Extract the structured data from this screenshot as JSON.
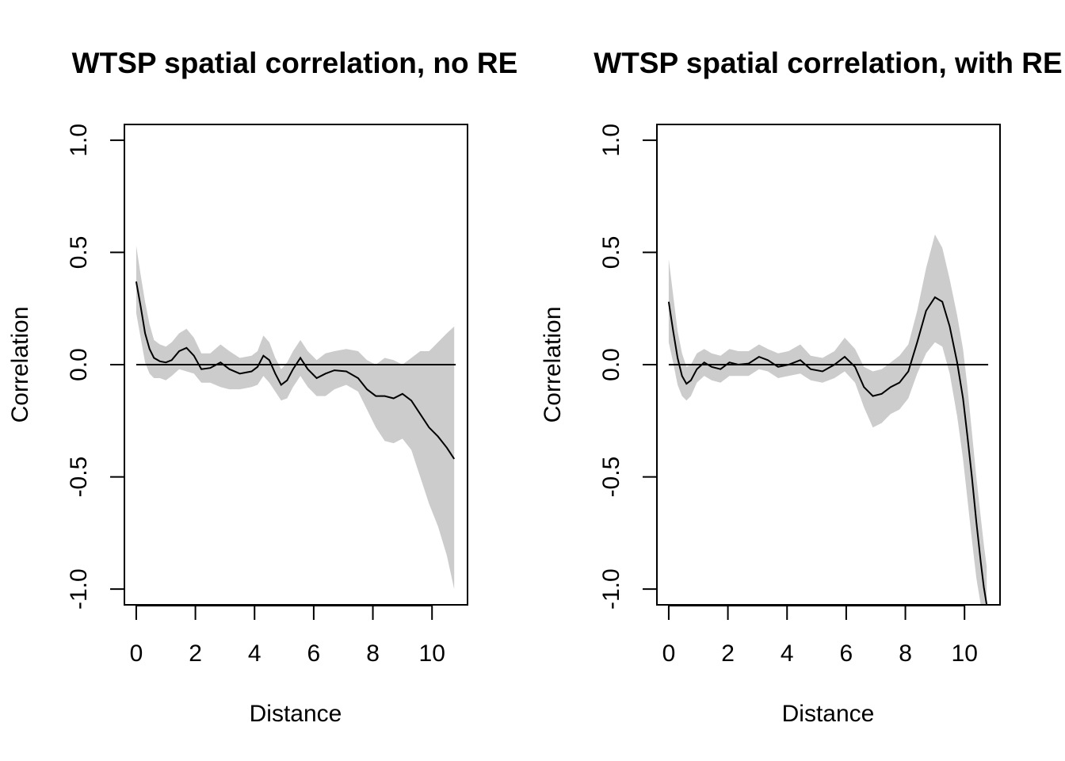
{
  "chart_data": [
    {
      "type": "area",
      "title": "WTSP spatial correlation, no RE",
      "xlabel": "Distance",
      "ylabel": "Correlation",
      "xlim": [
        -0.4,
        11.2
      ],
      "ylim": [
        -1.07,
        1.07
      ],
      "xticks": [
        0,
        2,
        4,
        6,
        8,
        10
      ],
      "yticks": [
        -1.0,
        -0.5,
        0.0,
        0.5,
        1.0
      ],
      "xtick_labels": [
        "0",
        "2",
        "4",
        "6",
        "8",
        "10"
      ],
      "ytick_labels": [
        "-1.0",
        "-0.5",
        "0.0",
        "0.5",
        "1.0"
      ],
      "reference_line": {
        "y": 0,
        "x": [
          0,
          10.8
        ]
      },
      "colors": {
        "band": "#cccccc",
        "line": "#000000"
      },
      "series": [
        {
          "x": [
            0,
            0.15,
            0.3,
            0.45,
            0.6,
            0.8,
            1.0,
            1.2,
            1.45,
            1.7,
            1.95,
            2.2,
            2.5,
            2.85,
            3.15,
            3.5,
            3.9,
            4.1,
            4.3,
            4.5,
            4.7,
            4.9,
            5.1,
            5.3,
            5.55,
            5.8,
            6.1,
            6.4,
            6.7,
            7.1,
            7.5,
            7.8,
            8.1,
            8.4,
            8.7,
            9.0,
            9.3,
            9.6,
            9.9,
            10.2,
            10.5,
            10.75
          ],
          "y": [
            0.37,
            0.26,
            0.14,
            0.07,
            0.03,
            0.015,
            0.01,
            0.02,
            0.06,
            0.075,
            0.04,
            -0.02,
            -0.015,
            0.01,
            -0.02,
            -0.04,
            -0.03,
            -0.01,
            0.04,
            0.02,
            -0.04,
            -0.09,
            -0.07,
            -0.02,
            0.03,
            -0.02,
            -0.06,
            -0.04,
            -0.025,
            -0.03,
            -0.06,
            -0.11,
            -0.14,
            -0.14,
            -0.15,
            -0.13,
            -0.16,
            -0.22,
            -0.28,
            -0.32,
            -0.37,
            -0.42
          ],
          "lower": [
            0.23,
            0.12,
            0.01,
            -0.04,
            -0.06,
            -0.06,
            -0.07,
            -0.05,
            -0.02,
            -0.03,
            -0.04,
            -0.08,
            -0.08,
            -0.1,
            -0.11,
            -0.11,
            -0.1,
            -0.09,
            -0.05,
            -0.08,
            -0.12,
            -0.16,
            -0.15,
            -0.1,
            -0.05,
            -0.1,
            -0.14,
            -0.14,
            -0.11,
            -0.09,
            -0.12,
            -0.2,
            -0.28,
            -0.34,
            -0.35,
            -0.33,
            -0.38,
            -0.5,
            -0.62,
            -0.72,
            -0.85,
            -1.0
          ],
          "upper": [
            0.53,
            0.4,
            0.28,
            0.18,
            0.11,
            0.09,
            0.08,
            0.1,
            0.14,
            0.16,
            0.12,
            0.05,
            0.05,
            0.09,
            0.06,
            0.03,
            0.04,
            0.06,
            0.13,
            0.1,
            0.03,
            -0.02,
            0.01,
            0.06,
            0.11,
            0.06,
            0.02,
            0.05,
            0.06,
            0.07,
            0.06,
            0.02,
            0.0,
            0.03,
            0.02,
            0.0,
            0.03,
            0.06,
            0.06,
            0.1,
            0.14,
            0.17
          ]
        }
      ]
    },
    {
      "type": "area",
      "title": "WTSP spatial correlation, with RE",
      "xlabel": "Distance",
      "ylabel": "Correlation",
      "xlim": [
        -0.4,
        11.2
      ],
      "ylim": [
        -1.07,
        1.07
      ],
      "xticks": [
        0,
        2,
        4,
        6,
        8,
        10
      ],
      "yticks": [
        -1.0,
        -0.5,
        0.0,
        0.5,
        1.0
      ],
      "xtick_labels": [
        "0",
        "2",
        "4",
        "6",
        "8",
        "10"
      ],
      "ytick_labels": [
        "-1.0",
        "-0.5",
        "0.0",
        "0.5",
        "1.0"
      ],
      "reference_line": {
        "y": 0,
        "x": [
          0,
          10.8
        ]
      },
      "colors": {
        "band": "#cccccc",
        "line": "#000000"
      },
      "series": [
        {
          "x": [
            0,
            0.15,
            0.3,
            0.45,
            0.6,
            0.75,
            0.95,
            1.2,
            1.45,
            1.75,
            2.05,
            2.35,
            2.7,
            3.05,
            3.35,
            3.7,
            4.05,
            4.45,
            4.8,
            5.2,
            5.6,
            5.95,
            6.3,
            6.6,
            6.9,
            7.2,
            7.5,
            7.8,
            8.1,
            8.4,
            8.7,
            9.0,
            9.25,
            9.5,
            9.75,
            9.95,
            10.1,
            10.25,
            10.4,
            10.55,
            10.65,
            10.75
          ],
          "y": [
            0.28,
            0.15,
            0.03,
            -0.05,
            -0.085,
            -0.07,
            -0.02,
            0.01,
            -0.01,
            -0.02,
            0.01,
            0.0,
            0.005,
            0.035,
            0.02,
            -0.01,
            0.0,
            0.02,
            -0.02,
            -0.03,
            0.0,
            0.035,
            -0.01,
            -0.1,
            -0.14,
            -0.13,
            -0.1,
            -0.08,
            -0.03,
            0.1,
            0.24,
            0.3,
            0.28,
            0.17,
            0.01,
            -0.15,
            -0.32,
            -0.5,
            -0.7,
            -0.88,
            -0.99,
            -1.07
          ],
          "lower": [
            0.1,
            0.01,
            -0.09,
            -0.14,
            -0.16,
            -0.14,
            -0.08,
            -0.05,
            -0.07,
            -0.08,
            -0.05,
            -0.05,
            -0.05,
            -0.02,
            -0.03,
            -0.06,
            -0.05,
            -0.04,
            -0.07,
            -0.08,
            -0.06,
            -0.03,
            -0.08,
            -0.19,
            -0.28,
            -0.26,
            -0.22,
            -0.2,
            -0.15,
            -0.04,
            0.05,
            0.1,
            0.08,
            -0.04,
            -0.23,
            -0.42,
            -0.6,
            -0.78,
            -0.95,
            -1.07,
            -1.07,
            -1.07
          ],
          "upper": [
            0.47,
            0.31,
            0.15,
            0.05,
            -0.01,
            0.0,
            0.05,
            0.07,
            0.05,
            0.04,
            0.07,
            0.06,
            0.06,
            0.09,
            0.07,
            0.05,
            0.06,
            0.09,
            0.04,
            0.03,
            0.06,
            0.12,
            0.07,
            -0.01,
            -0.03,
            -0.02,
            0.01,
            0.04,
            0.09,
            0.24,
            0.43,
            0.58,
            0.52,
            0.38,
            0.22,
            0.07,
            -0.1,
            -0.3,
            -0.5,
            -0.68,
            -0.8,
            -0.9
          ]
        }
      ]
    }
  ]
}
